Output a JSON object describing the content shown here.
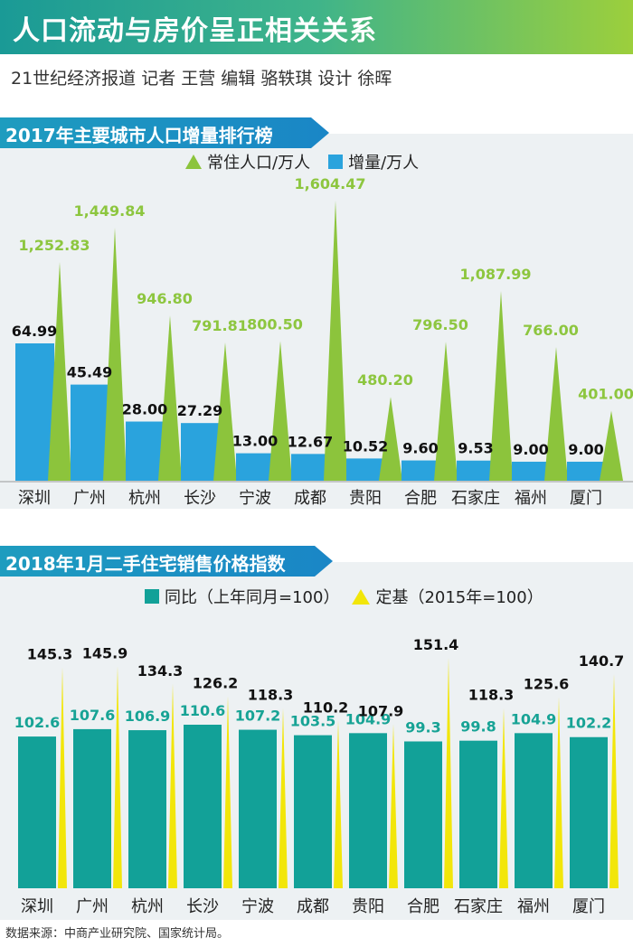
{
  "header": {
    "title": "人口流动与房价呈正相关关系",
    "byline": "21世纪经济报道 记者 王营 编辑 骆轶琪 设计 徐晖"
  },
  "colors": {
    "banner_start": "#1a9a96",
    "banner_end": "#9ccf3c",
    "section_blue": "#1a86c6",
    "green": "#8cc43c",
    "blue": "#2aa3dd",
    "teal": "#12a198",
    "yellow": "#f2e60a",
    "teal_label": "#17a395",
    "green_label": "#8dc63f"
  },
  "chart_data": [
    {
      "type": "bar",
      "title": "2017年主要城市人口增量排行榜",
      "categories": [
        "深圳",
        "广州",
        "杭州",
        "长沙",
        "宁波",
        "成都",
        "贵阳",
        "合肥",
        "石家庄",
        "福州",
        "厦门"
      ],
      "series": [
        {
          "name": "常住人口/万人",
          "values": [
            1252.83,
            1449.84,
            946.8,
            791.81,
            800.5,
            1604.47,
            480.2,
            796.5,
            1087.99,
            766.0,
            401.0
          ],
          "labels": [
            "1,252.83",
            "1,449.84",
            "946.80",
            "791.81",
            "800.50",
            "1,604.47",
            "480.20",
            "796.50",
            "1,087.99",
            "766.00",
            "401.00"
          ]
        },
        {
          "name": "增量/万人",
          "values": [
            64.99,
            45.49,
            28.0,
            27.29,
            13.0,
            12.67,
            10.52,
            9.6,
            9.53,
            9.0,
            9.0
          ],
          "labels": [
            "64.99",
            "45.49",
            "28.00",
            "27.29",
            "13.00",
            "12.67",
            "10.52",
            "9.60",
            "9.53",
            "9.00",
            "9.00"
          ]
        }
      ]
    },
    {
      "type": "bar",
      "title": "2018年1月二手住宅销售价格指数",
      "categories": [
        "深圳",
        "广州",
        "杭州",
        "长沙",
        "宁波",
        "成都",
        "贵阳",
        "合肥",
        "石家庄",
        "福州",
        "厦门"
      ],
      "series": [
        {
          "name": "同比（上年同月=100）",
          "values": [
            102.6,
            107.6,
            106.9,
            110.6,
            107.2,
            103.5,
            104.9,
            99.3,
            99.8,
            104.9,
            102.2
          ],
          "labels": [
            "102.6",
            "107.6",
            "106.9",
            "110.6",
            "107.2",
            "103.5",
            "104.9",
            "99.3",
            "99.8",
            "104.9",
            "102.2"
          ]
        },
        {
          "name": "定基（2015年=100）",
          "values": [
            145.3,
            145.9,
            134.3,
            126.2,
            118.3,
            110.2,
            107.9,
            151.4,
            118.3,
            125.6,
            140.7
          ],
          "labels": [
            "145.3",
            "145.9",
            "134.3",
            "126.2",
            "118.3",
            "110.2",
            "107.9",
            "151.4",
            "118.3",
            "125.6",
            "140.7"
          ]
        }
      ]
    }
  ],
  "footnote": "数据来源：中商产业研究院、国家统计局。"
}
